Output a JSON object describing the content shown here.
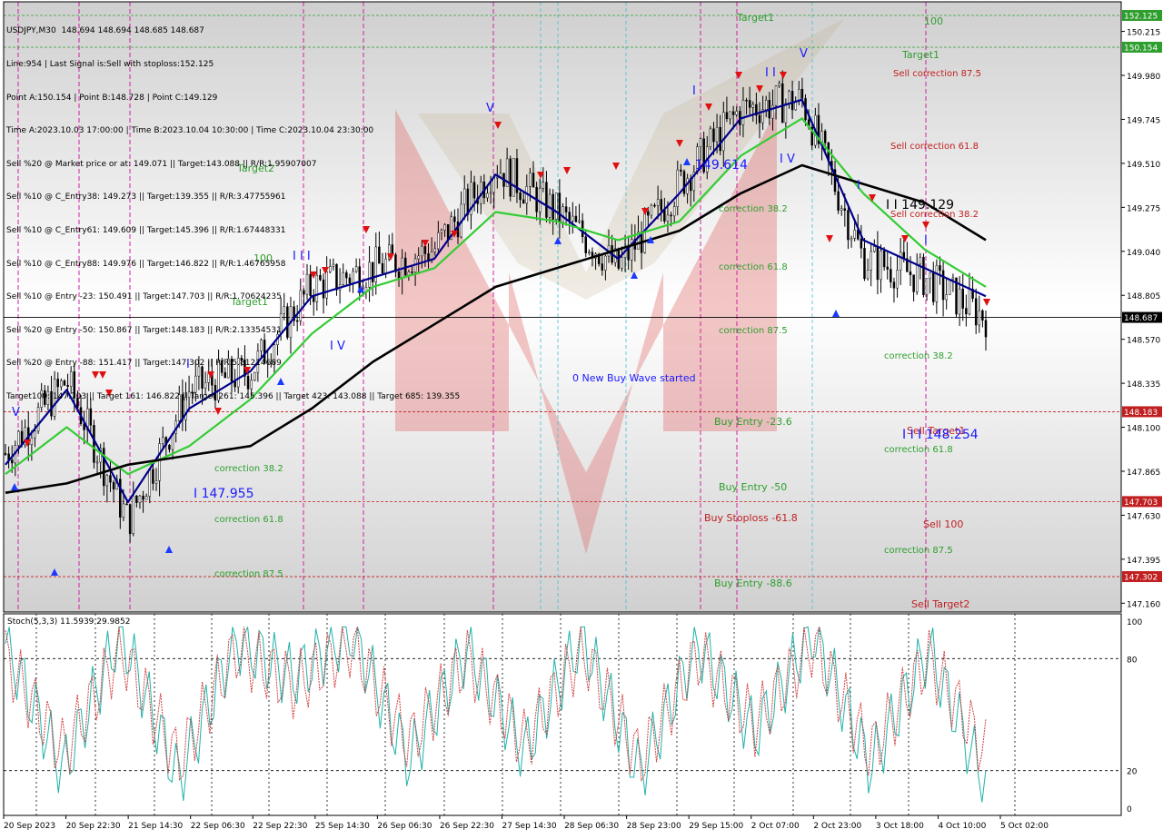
{
  "header": {
    "symbol": "USDJPY,M30",
    "ohlc": "148.694 148.694 148.685 148.687"
  },
  "info_lines": [
    "Line:954 | Last Signal is:Sell with stoploss:152.125",
    "Point A:150.154 | Point B:148.728 | Point C:149.129",
    "Time A:2023.10.03 17:00:00 | Time B:2023.10.04 10:30:00 | Time C:2023.10.04 23:30:00",
    "Sell %20 @ Market price or at: 149.071 || Target:143.088 || R/R:1.95907007",
    "Sell %10 @ C_Entry38: 149.273 || Target:139.355 || R/R:3.47755961",
    "Sell %10 @ C_Entry61: 149.609 || Target:145.396 || R/R:1.67448331",
    "Sell %10 @ C_Entry88: 149.976 || Target:146.822 || R/R:1.46765958",
    "Sell %10 @ Entry -23: 150.491 || Target:147.703 || R/R:1.70624235",
    "Sell %20 @ Entry -50: 150.867 || Target:148.183 || R/R:2.13354531",
    "Sell %20 @ Entry -88: 151.417 || Target:147.302 || R/R:5.81214689",
    "Target100: 147.703 || Target 161: 146.822 || Target 261: 145.396 || Target 423: 143.088 || Target 685: 139.355"
  ],
  "price_axis": {
    "ticks": [
      "150.215",
      "149.980",
      "149.745",
      "149.510",
      "149.275",
      "149.040",
      "148.805",
      "148.570",
      "148.335",
      "148.100",
      "147.865",
      "147.630",
      "147.395",
      "147.160"
    ],
    "tick_values": [
      150.215,
      149.98,
      149.745,
      149.51,
      149.275,
      149.04,
      148.805,
      148.57,
      148.335,
      148.1,
      147.865,
      147.63,
      147.395,
      147.16
    ],
    "tag_values": [
      152.125,
      150.154,
      148.687,
      148.183,
      147.703,
      147.302
    ],
    "ylim": [
      147.113,
      150.373
    ]
  },
  "price_tags": [
    {
      "text": "152.125",
      "color": "#2e9e2e"
    },
    {
      "text": "150.154",
      "color": "#2e9e2e"
    },
    {
      "text": "148.687",
      "color": "#000000"
    },
    {
      "text": "148.183",
      "color": "#c02020"
    },
    {
      "text": "147.703",
      "color": "#c02020"
    },
    {
      "text": "147.302",
      "color": "#c02020"
    }
  ],
  "time_axis": [
    "20 Sep 2023",
    "20 Sep 22:30",
    "21 Sep 14:30",
    "22 Sep 06:30",
    "22 Sep 22:30",
    "25 Sep 14:30",
    "26 Sep 06:30",
    "26 Sep 22:30",
    "27 Sep 14:30",
    "28 Sep 06:30",
    "28 Sep 23:00",
    "29 Sep 15:00",
    "2 Oct 07:00",
    "2 Oct 23:00",
    "3 Oct 18:00",
    "4 Oct 10:00",
    "5 Oct 02:00"
  ],
  "stoch": {
    "label": "Stoch(5,3,3) 11.5939 29.9852",
    "levels": [
      "100",
      "80",
      "20",
      "0"
    ],
    "level_values": [
      100,
      80,
      20,
      0
    ],
    "ylim": [
      -4,
      104
    ]
  },
  "annotations_green": [
    "Target1",
    "100",
    "Target1",
    "Target2",
    "100",
    "Target1",
    "correction 38.2",
    "correction 61.8",
    "correction 87.5",
    "Buy Entry -23.6",
    "Buy Entry -50",
    "Buy Entry -88.6",
    "correction 38.2",
    "correction 61.8",
    "correction 87.5",
    "correction 38.2",
    "correction 61.8",
    "correction 87.5"
  ],
  "annotations_red": [
    "Sell correction 87.5",
    "Sell correction 61.8",
    "Sell correction 38.2",
    "Buy Stoploss -61.8",
    "Sell Target1",
    "Sell 100",
    "Sell Target2"
  ],
  "annotations_blue": [
    "0 New Buy Wave started",
    "149.614",
    "I 147.955",
    "I I I 148.254",
    "I I 149.129",
    "V",
    "V",
    "V",
    "I",
    "I",
    "I I I",
    "I V",
    "I",
    "I I",
    "I V",
    "I"
  ],
  "colors": {
    "sell_red": "#c02020",
    "target_green": "#2e9e2e",
    "wave_blue": "#1a1aff",
    "ma_fast": "#00008b",
    "ma_mid": "#33cc33",
    "ma_slow": "#000000",
    "stoch_main": "#20b2aa",
    "stoch_signal": "#d04040"
  },
  "chart_data": [
    {
      "type": "candlestick",
      "title": "USDJPY,M30",
      "x": [
        "20 Sep 2023",
        "20 Sep 22:30",
        "21 Sep 14:30",
        "22 Sep 06:30",
        "22 Sep 22:30",
        "25 Sep 14:30",
        "26 Sep 06:30",
        "26 Sep 22:30",
        "27 Sep 14:30",
        "28 Sep 06:30",
        "28 Sep 23:00",
        "29 Sep 15:00",
        "2 Oct 07:00",
        "2 Oct 23:00",
        "3 Oct 18:00",
        "4 Oct 10:00",
        "5 Oct 02:00"
      ],
      "approx_close": [
        147.96,
        148.35,
        147.6,
        148.3,
        148.4,
        148.85,
        148.95,
        149.05,
        149.5,
        149.25,
        148.95,
        149.4,
        149.8,
        149.85,
        149.0,
        148.9,
        148.69
      ],
      "ylim": [
        147.113,
        150.373
      ],
      "levels": [
        152.125,
        150.154,
        148.687,
        148.183,
        147.703,
        147.302
      ],
      "series": [
        {
          "name": "MA fast",
          "values": [
            147.9,
            148.3,
            147.7,
            148.2,
            148.4,
            148.8,
            148.9,
            149.0,
            149.45,
            149.25,
            149.0,
            149.35,
            149.75,
            149.85,
            149.1,
            148.95,
            148.8
          ]
        },
        {
          "name": "MA mid",
          "values": [
            147.85,
            148.1,
            147.85,
            148.0,
            148.25,
            148.6,
            148.85,
            148.95,
            149.25,
            149.2,
            149.1,
            149.2,
            149.55,
            149.75,
            149.35,
            149.05,
            148.85
          ]
        },
        {
          "name": "MA slow",
          "values": [
            147.75,
            147.8,
            147.9,
            147.95,
            148.0,
            148.2,
            148.45,
            148.65,
            148.85,
            148.95,
            149.05,
            149.15,
            149.35,
            149.5,
            149.4,
            149.3,
            149.1
          ]
        }
      ]
    },
    {
      "type": "line",
      "title": "Stoch(5,3,3) 11.5939 29.9852",
      "ylim": [
        0,
        100
      ],
      "series": [
        {
          "name": "main",
          "values": [
            88,
            20,
            95,
            15,
            90,
            70,
            95,
            25,
            85,
            30,
            92,
            18,
            88,
            40,
            95,
            22,
            85,
            12
          ]
        },
        {
          "name": "signal",
          "values": [
            80,
            30,
            85,
            25,
            85,
            65,
            88,
            35,
            80,
            35,
            85,
            25,
            82,
            45,
            88,
            30,
            80,
            30
          ]
        }
      ]
    }
  ]
}
